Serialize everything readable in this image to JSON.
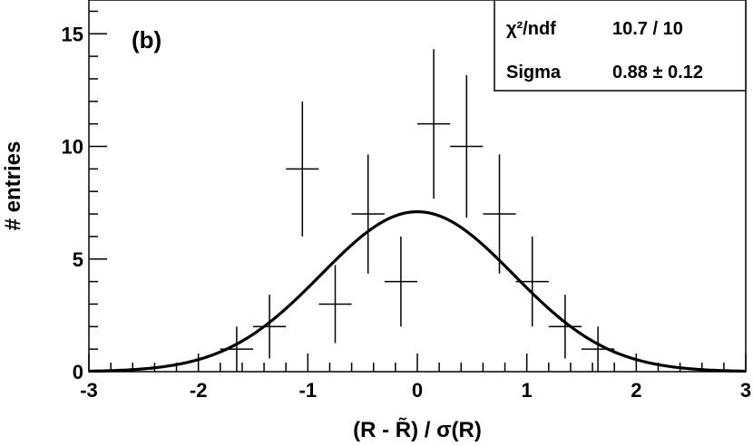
{
  "chart_data": {
    "type": "histogram-errorbars-with-fit",
    "panel_label": "(b)",
    "xlabel": "(R - R̃) / σ(R)",
    "ylabel": "# entries",
    "xlim": [
      -3,
      3
    ],
    "ylim": [
      0,
      16.5
    ],
    "x_ticks": [
      -3,
      -2,
      -1,
      0,
      1,
      2,
      3
    ],
    "y_ticks": [
      0,
      5,
      10,
      15
    ],
    "bin_width": 0.3,
    "points": [
      {
        "x": -1.65,
        "y": 1
      },
      {
        "x": -1.35,
        "y": 2
      },
      {
        "x": -1.05,
        "y": 9
      },
      {
        "x": -0.75,
        "y": 3
      },
      {
        "x": -0.45,
        "y": 7
      },
      {
        "x": -0.15,
        "y": 4
      },
      {
        "x": 0.15,
        "y": 11
      },
      {
        "x": 0.45,
        "y": 10
      },
      {
        "x": 0.75,
        "y": 7
      },
      {
        "x": 1.05,
        "y": 4
      },
      {
        "x": 1.35,
        "y": 2
      },
      {
        "x": 1.65,
        "y": 1
      }
    ],
    "fit": {
      "function": "gaussian",
      "amplitude": 7.1,
      "mean": 0.0,
      "sigma": 0.88
    },
    "stats_box": {
      "chi2_label": "χ²/ndf",
      "chi2_value": "10.7 / 10",
      "sigma_label": "Sigma",
      "sigma_value": "0.88 ± 0.12"
    }
  }
}
